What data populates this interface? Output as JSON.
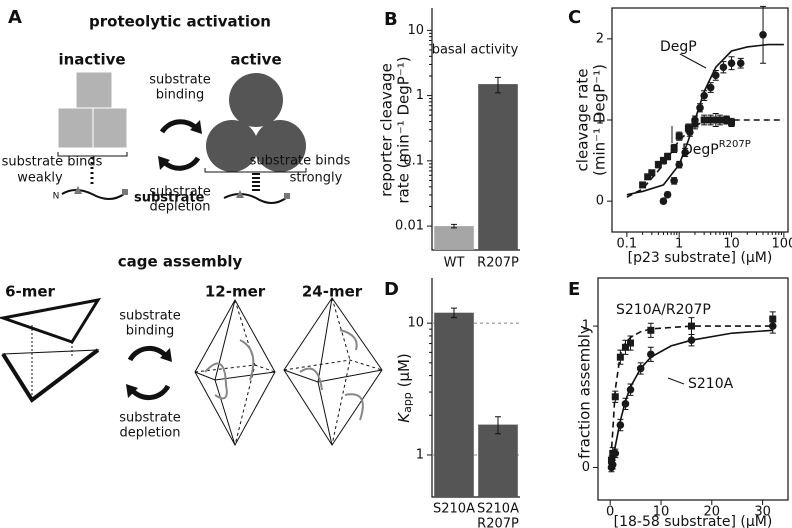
{
  "diagram": {
    "panel": "A",
    "top": {
      "title": "proteolytic activation",
      "left": "inactive",
      "right": "active",
      "forward": [
        "substrate",
        "binding"
      ],
      "backward": [
        "substrate",
        "depletion"
      ],
      "weak": [
        "substrate binds",
        "weakly"
      ],
      "strong": [
        "substrate binds",
        "strongly"
      ],
      "terminus": "N",
      "substrate": "substrate"
    },
    "bottom": {
      "title": "cage assembly",
      "left": "6-mer",
      "middle": "12-mer",
      "right": "24-mer",
      "forward": [
        "substrate",
        "binding"
      ],
      "backward": [
        "substrate",
        "depletion"
      ]
    }
  },
  "chart_data": [
    {
      "type": "bar",
      "panel": "B",
      "annotation": "basal activity",
      "ylabel": [
        "reporter cleavage",
        "rate (min⁻¹ DegP⁻¹)"
      ],
      "categories": [
        "WT",
        "R207P"
      ],
      "values": [
        0.01,
        1.5
      ],
      "errors": [
        0.0006,
        0.4
      ],
      "colors": [
        "#a6a6a6",
        "#555555"
      ],
      "ylog": true,
      "ylim": [
        0.0043,
        22
      ],
      "yticks": [
        0.01,
        0.1,
        1,
        10
      ],
      "grid": false
    },
    {
      "type": "scatter",
      "panel": "C",
      "ylabel": [
        "cleavage rate",
        "(min⁻¹ DegP⁻¹)"
      ],
      "xlabel": "[p23 substrate] (µM)",
      "xlog": true,
      "xlim": [
        0.052,
        120
      ],
      "xticks": [
        0.1,
        1,
        10,
        100
      ],
      "ylim": [
        -0.38,
        2.38
      ],
      "yticks": [
        0,
        1,
        2
      ],
      "series": [
        {
          "name": "DegP",
          "marker": "circle",
          "color": "#1a1a1a",
          "x": [
            0.5,
            0.6,
            0.8,
            1,
            1.3,
            1.6,
            2,
            2.5,
            3,
            4,
            5,
            7,
            10,
            15,
            40
          ],
          "values": [
            0.0,
            0.08,
            0.25,
            0.45,
            0.6,
            0.85,
            1.0,
            1.15,
            1.3,
            1.4,
            1.55,
            1.65,
            1.7,
            1.7,
            2.05
          ],
          "errors": [
            0.03,
            0.03,
            0.04,
            0.04,
            0.05,
            0.05,
            0.05,
            0.05,
            0.06,
            0.06,
            0.06,
            0.07,
            0.08,
            0.06,
            0.35
          ]
        },
        {
          "name": "DegP",
          "name_sup": "R207P",
          "marker": "square",
          "color": "#1a1a1a",
          "x": [
            0.2,
            0.25,
            0.3,
            0.4,
            0.5,
            0.6,
            0.8,
            1,
            1.5,
            2,
            3,
            4,
            5,
            6,
            8,
            10
          ],
          "values": [
            0.2,
            0.3,
            0.35,
            0.45,
            0.5,
            0.55,
            0.65,
            0.8,
            0.9,
            0.95,
            1.0,
            1.0,
            1.0,
            1.0,
            1.0,
            0.97
          ],
          "errors": [
            0.03,
            0.03,
            0.03,
            0.04,
            0.04,
            0.04,
            0.05,
            0.05,
            0.05,
            0.06,
            0.06,
            0.06,
            0.08,
            0.06,
            0.05,
            0.05
          ]
        }
      ],
      "fits": [
        {
          "dashed": false,
          "x": [
            0.1,
            0.2,
            0.5,
            1,
            1.5,
            2,
            3,
            5,
            10,
            20,
            50,
            100
          ],
          "values": [
            0.08,
            0.12,
            0.2,
            0.45,
            0.75,
            1.0,
            1.35,
            1.65,
            1.85,
            1.9,
            1.93,
            1.93
          ]
        },
        {
          "dashed": true,
          "x": [
            0.1,
            0.2,
            0.5,
            1,
            2,
            3,
            5,
            10,
            30,
            100
          ],
          "values": [
            0.05,
            0.15,
            0.45,
            0.75,
            0.93,
            0.98,
            1.0,
            1.0,
            1.0,
            1.0
          ]
        }
      ]
    },
    {
      "type": "bar",
      "panel": "D",
      "ylabel_parts": {
        "symbol": "K",
        "subscript": "app",
        "unit": " (µM)"
      },
      "categories": [
        [
          "S210A"
        ],
        [
          "S210A",
          "R207P"
        ]
      ],
      "values": [
        12,
        1.7
      ],
      "errors": [
        1,
        0.25
      ],
      "colors": [
        "#555555",
        "#555555"
      ],
      "ylog": true,
      "ylim": [
        0.48,
        22
      ],
      "yticks": [
        1,
        10
      ],
      "grid": true
    },
    {
      "type": "scatter",
      "panel": "E",
      "ylabel": [
        "fraction assembly"
      ],
      "xlabel": "[18-58 substrate] (µM)",
      "xlim": [
        -2.4,
        35
      ],
      "xticks": [
        0,
        10,
        20,
        30
      ],
      "ylim": [
        -0.23,
        1.34
      ],
      "yticks": [
        0,
        1
      ],
      "series": [
        {
          "name": "S210A",
          "marker": "circle",
          "color": "#1a1a1a",
          "x": [
            0.25,
            0.5,
            1,
            2,
            3,
            4,
            6,
            8,
            16,
            32
          ],
          "values": [
            0.0,
            0.02,
            0.1,
            0.3,
            0.45,
            0.55,
            0.7,
            0.8,
            0.9,
            1.0
          ],
          "errors": [
            0.03,
            0.03,
            0.03,
            0.04,
            0.04,
            0.04,
            0.04,
            0.05,
            0.04,
            0.05
          ]
        },
        {
          "name": "S210A/R207P",
          "marker": "square",
          "color": "#1a1a1a",
          "x": [
            0.25,
            0.5,
            1,
            2,
            3,
            4,
            8,
            16,
            32
          ],
          "values": [
            0.05,
            0.1,
            0.5,
            0.78,
            0.85,
            0.88,
            0.97,
            1.0,
            1.05
          ],
          "errors": [
            0.03,
            0.04,
            0.04,
            0.05,
            0.05,
            0.05,
            0.05,
            0.06,
            0.05
          ]
        }
      ],
      "fits": [
        {
          "dashed": false,
          "x": [
            0,
            1,
            2,
            3,
            4,
            6,
            8,
            12,
            16,
            24,
            32
          ],
          "values": [
            0,
            0.15,
            0.33,
            0.47,
            0.57,
            0.7,
            0.78,
            0.86,
            0.9,
            0.95,
            0.97
          ]
        },
        {
          "dashed": true,
          "x": [
            0,
            0.5,
            1,
            2,
            3,
            4,
            6,
            8,
            16,
            32
          ],
          "values": [
            0,
            0.25,
            0.55,
            0.8,
            0.88,
            0.92,
            0.96,
            0.98,
            1.0,
            1.0
          ]
        }
      ]
    }
  ]
}
